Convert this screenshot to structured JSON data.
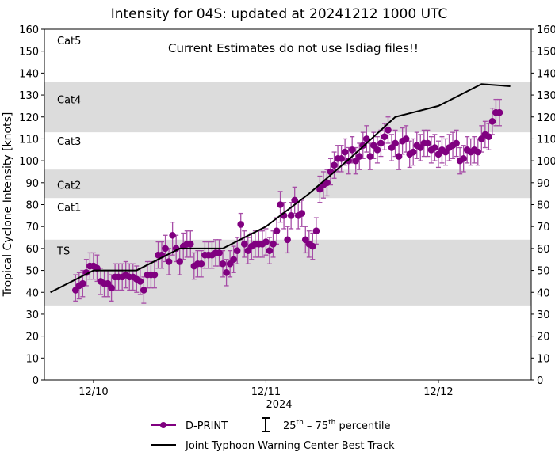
{
  "chart_data": {
    "type": "scatter",
    "title": "Intensity for 04S: updated at 20241212 1000 UTC",
    "annotation": "Current Estimates do not use lsdiag files!!",
    "ylabel": "Tropical Cyclone Intensity [knots]",
    "xlabel": "2024",
    "ylim": [
      0,
      160
    ],
    "yticks": [
      0,
      10,
      20,
      30,
      40,
      50,
      60,
      70,
      80,
      90,
      100,
      110,
      120,
      130,
      140,
      150,
      160
    ],
    "xlim": [
      "12/09 17:10",
      "12/12 12:55"
    ],
    "xticks": [
      {
        "time": "12/10 00:00",
        "label": "12/10"
      },
      {
        "time": "12/11 00:00",
        "label": "12/11"
      },
      {
        "time": "12/12 00:00",
        "label": "12/12"
      }
    ],
    "grid": false,
    "categories_bands": [
      {
        "label": "TS",
        "min": 34,
        "max": 64,
        "shaded": true,
        "label_y": 59
      },
      {
        "label": "Cat1",
        "min": 64,
        "max": 83,
        "shaded": false,
        "label_y": 79
      },
      {
        "label": "Cat2",
        "min": 83,
        "max": 96,
        "shaded": true,
        "label_y": 89
      },
      {
        "label": "Cat3",
        "min": 96,
        "max": 113,
        "shaded": false,
        "label_y": 109
      },
      {
        "label": "Cat4",
        "min": 113,
        "max": 136,
        "shaded": true,
        "label_y": 128
      },
      {
        "label": "Cat5",
        "min": 136,
        "max": 160,
        "shaded": false,
        "label_y": 155
      }
    ],
    "colors": {
      "dprint": "#800080",
      "errorbar": "#a64ca6",
      "best_track": "#000000",
      "band": "#dcdcdc"
    },
    "legend": {
      "placement": "bottom",
      "dprint_label": "D-PRINT",
      "percentile_label_base1": "25",
      "percentile_sup1": "th",
      "percentile_mid": " – 75",
      "percentile_sup2": "th",
      "percentile_label_end": " percentile",
      "best_track_label": "Joint Typhoon Warning Center Best Track"
    },
    "series": [
      {
        "name": "D-PRINT",
        "times": [
          "12/09 21:30",
          "12/09 22:00",
          "12/09 22:30",
          "12/09 23:00",
          "12/09 23:30",
          "12/10 00:00",
          "12/10 00:30",
          "12/10 01:00",
          "12/10 01:30",
          "12/10 02:00",
          "12/10 02:30",
          "12/10 03:00",
          "12/10 03:30",
          "12/10 04:00",
          "12/10 04:30",
          "12/10 05:00",
          "12/10 05:30",
          "12/10 06:00",
          "12/10 06:30",
          "12/10 07:00",
          "12/10 07:30",
          "12/10 08:00",
          "12/10 08:30",
          "12/10 09:00",
          "12/10 09:30",
          "12/10 10:00",
          "12/10 10:30",
          "12/10 11:00",
          "12/10 11:30",
          "12/10 12:00",
          "12/10 12:30",
          "12/10 13:00",
          "12/10 13:30",
          "12/10 14:00",
          "12/10 14:30",
          "12/10 15:00",
          "12/10 15:30",
          "12/10 16:00",
          "12/10 16:30",
          "12/10 17:00",
          "12/10 17:30",
          "12/10 18:00",
          "12/10 18:30",
          "12/10 19:00",
          "12/10 19:30",
          "12/10 20:00",
          "12/10 20:30",
          "12/10 21:00",
          "12/10 21:30",
          "12/10 22:00",
          "12/10 22:30",
          "12/10 23:00",
          "12/10 23:30",
          "12/11 00:00",
          "12/11 00:30",
          "12/11 01:00",
          "12/11 01:30",
          "12/11 02:00",
          "12/11 02:30",
          "12/11 03:00",
          "12/11 03:30",
          "12/11 04:00",
          "12/11 04:30",
          "12/11 05:00",
          "12/11 05:30",
          "12/11 06:00",
          "12/11 06:30",
          "12/11 07:00",
          "12/11 07:30",
          "12/11 08:00",
          "12/11 08:30",
          "12/11 09:00",
          "12/11 09:30",
          "12/11 10:00",
          "12/11 10:30",
          "12/11 11:00",
          "12/11 11:30",
          "12/11 12:00",
          "12/11 12:30",
          "12/11 13:00",
          "12/11 13:30",
          "12/11 14:00",
          "12/11 14:30",
          "12/11 15:00",
          "12/11 15:30",
          "12/11 16:00",
          "12/11 16:30",
          "12/11 17:00",
          "12/11 17:30",
          "12/11 18:00",
          "12/11 18:30",
          "12/11 19:00",
          "12/11 19:30",
          "12/11 20:00",
          "12/11 20:30",
          "12/11 21:00",
          "12/11 21:30",
          "12/11 22:00",
          "12/11 22:30",
          "12/11 23:00",
          "12/11 23:30",
          "12/12 00:00",
          "12/12 00:30",
          "12/12 01:00",
          "12/12 01:30",
          "12/12 02:00",
          "12/12 02:30",
          "12/12 03:00",
          "12/12 03:30",
          "12/12 04:00",
          "12/12 04:30",
          "12/12 05:00",
          "12/12 05:30",
          "12/12 06:00",
          "12/12 06:30",
          "12/12 07:00",
          "12/12 07:30",
          "12/12 08:00",
          "12/12 08:30"
        ],
        "values": [
          41,
          43,
          44,
          49,
          52,
          52,
          51,
          45,
          44,
          44,
          42,
          47,
          47,
          47,
          48,
          47,
          47,
          46,
          45,
          41,
          48,
          48,
          48,
          57,
          57,
          60,
          54,
          66,
          60,
          54,
          61,
          62,
          62,
          52,
          53,
          53,
          57,
          57,
          57,
          58,
          58,
          53,
          49,
          53,
          55,
          59,
          71,
          62,
          59,
          61,
          62,
          62,
          62,
          63,
          59,
          62,
          68,
          80,
          75,
          64,
          75,
          82,
          75,
          76,
          64,
          62,
          61,
          68,
          87,
          89,
          90,
          95,
          98,
          101,
          101,
          104,
          100,
          105,
          100,
          102,
          107,
          110,
          102,
          107,
          105,
          108,
          111,
          114,
          106,
          108,
          102,
          109,
          110,
          103,
          104,
          107,
          106,
          108,
          108,
          105,
          106,
          103,
          105,
          104,
          106,
          107,
          108,
          100,
          101,
          105,
          104,
          105,
          104,
          110,
          112,
          111,
          118,
          122,
          122
        ],
        "p25": [
          36,
          37,
          38,
          43,
          46,
          46,
          45,
          39,
          38,
          38,
          36,
          41,
          41,
          41,
          42,
          41,
          41,
          40,
          39,
          35,
          42,
          42,
          42,
          51,
          51,
          54,
          48,
          57,
          54,
          48,
          55,
          56,
          56,
          46,
          47,
          47,
          51,
          51,
          51,
          52,
          52,
          47,
          43,
          47,
          49,
          53,
          64,
          56,
          53,
          55,
          56,
          56,
          56,
          57,
          53,
          56,
          62,
          72,
          69,
          58,
          69,
          76,
          69,
          70,
          58,
          56,
          55,
          62,
          81,
          83,
          84,
          89,
          92,
          95,
          95,
          98,
          94,
          99,
          94,
          96,
          101,
          104,
          96,
          101,
          99,
          102,
          105,
          108,
          100,
          102,
          96,
          103,
          104,
          97,
          98,
          101,
          100,
          102,
          102,
          99,
          100,
          97,
          99,
          98,
          100,
          101,
          102,
          94,
          95,
          99,
          98,
          99,
          98,
          104,
          106,
          105,
          112,
          116,
          116
        ],
        "p75": [
          48,
          49,
          50,
          55,
          58,
          58,
          57,
          51,
          50,
          50,
          48,
          53,
          53,
          53,
          54,
          53,
          53,
          52,
          51,
          47,
          54,
          54,
          54,
          63,
          63,
          66,
          60,
          72,
          66,
          60,
          67,
          68,
          68,
          58,
          59,
          59,
          63,
          63,
          63,
          64,
          64,
          59,
          55,
          59,
          61,
          65,
          76,
          68,
          65,
          67,
          68,
          68,
          68,
          69,
          65,
          68,
          74,
          86,
          81,
          70,
          81,
          88,
          81,
          82,
          70,
          68,
          67,
          74,
          93,
          95,
          96,
          101,
          104,
          107,
          107,
          110,
          106,
          111,
          106,
          108,
          113,
          116,
          108,
          113,
          111,
          114,
          117,
          120,
          112,
          114,
          108,
          115,
          116,
          109,
          110,
          113,
          112,
          114,
          114,
          111,
          112,
          109,
          111,
          110,
          112,
          113,
          114,
          106,
          107,
          111,
          110,
          111,
          110,
          116,
          118,
          117,
          124,
          128,
          128
        ]
      },
      {
        "name": "Joint Typhoon Warning Center Best Track",
        "times": [
          "12/09 18:00",
          "12/10 00:00",
          "12/10 06:00",
          "12/10 12:00",
          "12/10 18:00",
          "12/11 00:00",
          "12/11 06:00",
          "12/11 12:00",
          "12/11 18:00",
          "12/12 00:00",
          "12/12 06:00",
          "12/12 10:00"
        ],
        "values": [
          40,
          50,
          50,
          60,
          60,
          70,
          85,
          102,
          120,
          125,
          135,
          134
        ]
      }
    ]
  }
}
